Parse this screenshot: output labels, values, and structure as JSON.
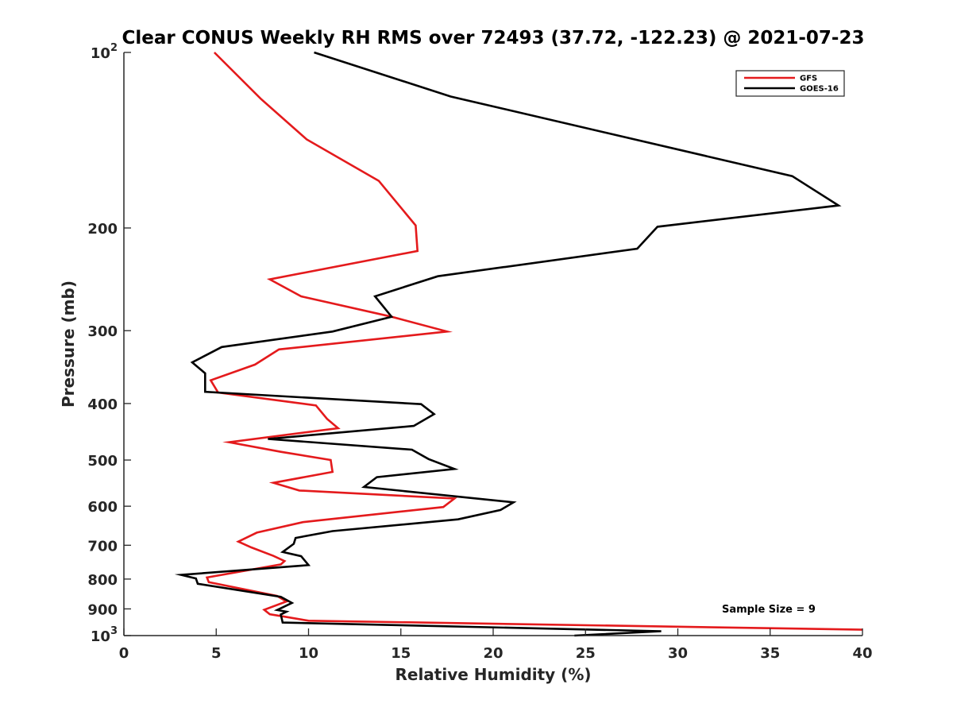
{
  "chart_data": {
    "type": "line",
    "orientation": "profile",
    "title": "Clear CONUS Weekly RH RMS over 72493 (37.72, -122.23) @ 2021-07-23",
    "xlabel": "Relative Humidity (%)",
    "ylabel": "Pressure (mb)",
    "xlim": [
      0,
      40
    ],
    "ylim": [
      100,
      1000
    ],
    "yscale": "log",
    "yreversed": true,
    "grid": false,
    "legend_position": "top-right",
    "x_ticks": [
      {
        "value": 0,
        "label": "0"
      },
      {
        "value": 5,
        "label": "5"
      },
      {
        "value": 10,
        "label": "10"
      },
      {
        "value": 15,
        "label": "15"
      },
      {
        "value": 20,
        "label": "20"
      },
      {
        "value": 25,
        "label": "25"
      },
      {
        "value": 30,
        "label": "30"
      },
      {
        "value": 35,
        "label": "35"
      },
      {
        "value": 40,
        "label": "40"
      }
    ],
    "y_ticks": [
      {
        "value": 100,
        "base": "10",
        "exp": "2"
      },
      {
        "value": 200,
        "base": "200",
        "exp": ""
      },
      {
        "value": 300,
        "base": "300",
        "exp": ""
      },
      {
        "value": 400,
        "base": "400",
        "exp": ""
      },
      {
        "value": 500,
        "base": "500",
        "exp": ""
      },
      {
        "value": 600,
        "base": "600",
        "exp": ""
      },
      {
        "value": 700,
        "base": "700",
        "exp": ""
      },
      {
        "value": 800,
        "base": "800",
        "exp": ""
      },
      {
        "value": 900,
        "base": "900",
        "exp": ""
      },
      {
        "value": 1000,
        "base": "10",
        "exp": "3"
      }
    ],
    "series": [
      {
        "name": "GFS",
        "color": "#e41a1c",
        "points": [
          [
            4.9,
            100
          ],
          [
            7.4,
            120
          ],
          [
            9.9,
            141
          ],
          [
            13.8,
            166
          ],
          [
            15.8,
            198
          ],
          [
            15.9,
            219
          ],
          [
            7.9,
            245
          ],
          [
            9.6,
            262
          ],
          [
            14.5,
            284
          ],
          [
            17.5,
            301
          ],
          [
            8.4,
            323
          ],
          [
            7.1,
            343
          ],
          [
            4.7,
            365
          ],
          [
            5.1,
            383
          ],
          [
            10.4,
            403
          ],
          [
            11.0,
            425
          ],
          [
            11.6,
            441
          ],
          [
            5.7,
            466
          ],
          [
            8.5,
            484
          ],
          [
            11.2,
            500
          ],
          [
            11.3,
            524
          ],
          [
            8.1,
            547
          ],
          [
            9.5,
            564
          ],
          [
            17.9,
            582
          ],
          [
            17.3,
            602
          ],
          [
            9.7,
            639
          ],
          [
            7.2,
            666
          ],
          [
            6.2,
            690
          ],
          [
            6.9,
            706
          ],
          [
            8.1,
            730
          ],
          [
            8.7,
            745
          ],
          [
            8.5,
            755
          ],
          [
            4.5,
            795
          ],
          [
            4.6,
            810
          ],
          [
            8.3,
            855
          ],
          [
            8.8,
            874
          ],
          [
            7.6,
            903
          ],
          [
            7.9,
            919
          ],
          [
            8.7,
            928
          ],
          [
            10.0,
            943
          ],
          [
            40.0,
            977
          ]
        ]
      },
      {
        "name": "GOES-16",
        "color": "#000000",
        "points": [
          [
            10.3,
            100
          ],
          [
            17.7,
            119
          ],
          [
            36.2,
            163
          ],
          [
            38.7,
            183
          ],
          [
            28.9,
            199
          ],
          [
            27.8,
            217
          ],
          [
            17.0,
            242
          ],
          [
            13.6,
            262
          ],
          [
            14.5,
            284
          ],
          [
            11.3,
            301
          ],
          [
            5.3,
            320
          ],
          [
            3.7,
            340
          ],
          [
            4.4,
            355
          ],
          [
            4.4,
            382
          ],
          [
            16.1,
            401
          ],
          [
            16.8,
            417
          ],
          [
            15.7,
            437
          ],
          [
            7.8,
            460
          ],
          [
            15.6,
            480
          ],
          [
            16.5,
            498
          ],
          [
            17.9,
            518
          ],
          [
            13.7,
            535
          ],
          [
            13.0,
            556
          ],
          [
            21.1,
            591
          ],
          [
            20.4,
            609
          ],
          [
            18.1,
            632
          ],
          [
            11.3,
            662
          ],
          [
            9.3,
            680
          ],
          [
            9.2,
            696
          ],
          [
            8.6,
            719
          ],
          [
            9.6,
            731
          ],
          [
            10.0,
            757
          ],
          [
            3.1,
            787
          ],
          [
            3.9,
            798
          ],
          [
            4.0,
            815
          ],
          [
            8.5,
            858
          ],
          [
            9.1,
            879
          ],
          [
            8.3,
            904
          ],
          [
            8.8,
            910
          ],
          [
            8.5,
            920
          ],
          [
            8.6,
            950
          ],
          [
            29.1,
            983
          ],
          [
            24.4,
            1000
          ]
        ]
      }
    ],
    "annotations": [
      {
        "text": "Sample Size = 9"
      }
    ]
  }
}
